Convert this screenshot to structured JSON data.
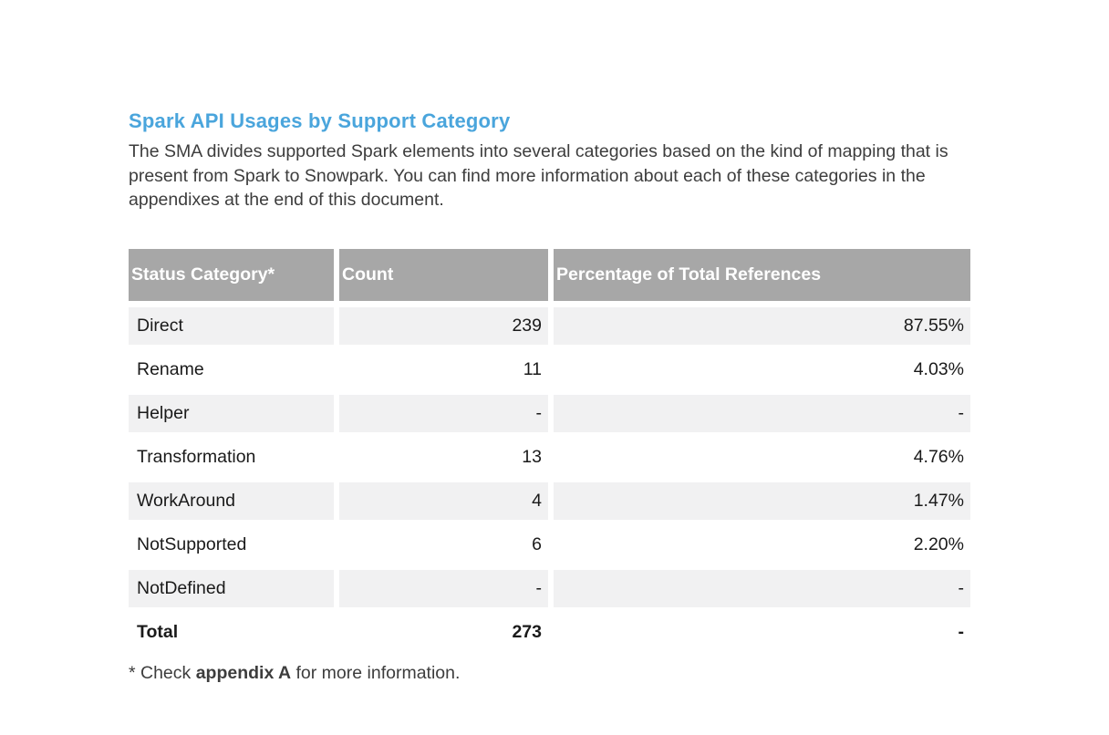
{
  "page": {
    "title": "Spark API Usages by Support Category",
    "intro": "The SMA divides supported Spark elements into several categories based on the kind of mapping that is present from Spark to Snowpark. You can find more information about each of these categories in the appendixes at the end of this document.",
    "footnote": {
      "prefix": "* Check ",
      "bold": "appendix A",
      "suffix": " for more information."
    }
  },
  "colors": {
    "heading_blue": "#4aa5dc",
    "header_gray": "#a7a7a7",
    "alt_row_gray": "#f1f1f2",
    "body_text": "#3d3d3d",
    "table_text": "#1a1a1a"
  },
  "table": {
    "columns": [
      "Status Category*",
      "Count",
      "Percentage of Total References"
    ],
    "rows": [
      [
        "Direct",
        "239",
        "87.55%"
      ],
      [
        "Rename",
        "11",
        "4.03%"
      ],
      [
        "Helper",
        "-",
        "-"
      ],
      [
        "Transformation",
        "13",
        "4.76%"
      ],
      [
        "WorkAround",
        "4",
        "1.47%"
      ],
      [
        "NotSupported",
        "6",
        "2.20%"
      ],
      [
        "NotDefined",
        "-",
        "-"
      ]
    ],
    "total_row": [
      "Total",
      "273",
      "-"
    ]
  }
}
